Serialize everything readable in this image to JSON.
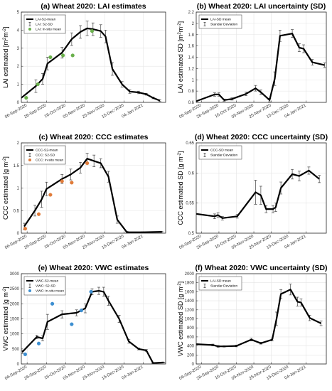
{
  "chart_data": [
    {
      "id": "a",
      "type": "line",
      "title": "(a) Wheat 2020: LAI estimates",
      "ylabel": "LAI estimated [m$^2$m$^{-2}$]",
      "xlabel": "",
      "ylim": [
        0,
        5
      ],
      "yticks": [
        0,
        1,
        2,
        3,
        4,
        5
      ],
      "xlim": [
        "2020-08-31",
        "2021-01-27"
      ],
      "xticks": [
        "06-Sep-2020",
        "26-Sep-2020",
        "16-Oct-2020",
        "05-Nov-2020",
        "25-Nov-2020",
        "15-Dec-2020",
        "04-Jan-2021"
      ],
      "grid": true,
      "legend_position": "top-left",
      "legend": [
        "LAI-S2-mean",
        "LAI: S2-SD",
        "LAI: in-situ mean"
      ],
      "series": [
        {
          "name": "LAI-S2-mean",
          "kind": "mean_with_sd",
          "x": [
            "2020-08-31",
            "2020-09-15",
            "2020-09-22",
            "2020-09-27",
            "2020-10-12",
            "2020-10-22",
            "2020-10-31",
            "2020-11-07",
            "2020-11-13",
            "2020-11-21",
            "2020-11-26",
            "2020-12-03",
            "2020-12-13",
            "2020-12-21",
            "2020-12-30",
            "2021-01-07",
            "2021-01-14",
            "2021-01-21"
          ],
          "y": [
            0.25,
            0.9,
            1.3,
            2.15,
            2.75,
            3.5,
            3.9,
            4.1,
            4.05,
            3.95,
            3.65,
            1.85,
            1.0,
            0.6,
            0.55,
            0.45,
            0.25,
            0.1
          ],
          "sd": [
            0,
            0.35,
            0.3,
            0.35,
            0.3,
            0.35,
            0.35,
            0.4,
            0.35,
            0.35,
            0.35,
            0.35,
            0.15,
            0.1,
            0.07,
            0.05,
            0.05,
            0.05
          ]
        },
        {
          "name": "LAI: in-situ mean",
          "kind": "insitu",
          "color": "#6ab04c",
          "x": [
            "2020-09-05",
            "2020-09-17",
            "2020-09-30",
            "2020-10-13",
            "2020-10-23",
            "2020-11-12"
          ],
          "y": [
            0.25,
            1.0,
            2.5,
            2.6,
            2.6,
            3.95
          ]
        }
      ]
    },
    {
      "id": "b",
      "type": "line",
      "title": "(b) Wheat 2020: LAI uncertainty (SD)",
      "ylabel": "LAI estimated SD [m$^2$m$^{-2}$]",
      "xlabel": "",
      "ylim": [
        0.6,
        2.2
      ],
      "yticks": [
        0.6,
        0.8,
        1,
        1.2,
        1.4,
        1.6,
        1.8,
        2,
        2.2
      ],
      "xlim": [
        "2020-08-31",
        "2021-01-27"
      ],
      "xticks": [
        "06-Sep-2020",
        "26-Sep-2020",
        "16-Oct-2020",
        "05-Nov-2020",
        "25-Nov-2020",
        "15-Dec-2020",
        "04-Jan-2021"
      ],
      "grid": true,
      "legend_position": "top-left",
      "legend": [
        "LAI-SD mean",
        "Standar Deviation"
      ],
      "series": [
        {
          "name": "LAI-SD mean",
          "kind": "mean_with_sd",
          "x": [
            "2020-08-31",
            "2020-09-21",
            "2020-09-26",
            "2020-10-02",
            "2020-10-11",
            "2020-10-27",
            "2020-11-07",
            "2020-11-13",
            "2020-11-23",
            "2020-11-29",
            "2020-12-05",
            "2020-12-19",
            "2020-12-27",
            "2021-01-01",
            "2021-01-11",
            "2021-01-25"
          ],
          "y": [
            0.62,
            0.74,
            0.74,
            0.64,
            0.66,
            0.75,
            0.85,
            0.78,
            0.64,
            1.02,
            1.78,
            1.82,
            1.57,
            1.55,
            1.31,
            1.26
          ],
          "sd": [
            0,
            0.03,
            0.03,
            0.02,
            0.02,
            0.03,
            0.05,
            0.04,
            0.03,
            0.12,
            0.1,
            0.07,
            0.07,
            0.07,
            0.05,
            0.04
          ]
        }
      ]
    },
    {
      "id": "c",
      "type": "line",
      "title": "(c) Wheat 2020: CCC estimates",
      "ylabel": "CCC estimated [g m$^{-2}$]",
      "xlabel": "",
      "ylim": [
        0,
        2
      ],
      "yticks": [
        0,
        0.5,
        1,
        1.5,
        2
      ],
      "xlim": [
        "2020-08-31",
        "2021-01-27"
      ],
      "xticks": [
        "06-Sep-2020",
        "26-Sep-2020",
        "16-Oct-2020",
        "05-Nov-2020",
        "25-Nov-2020",
        "15-Dec-2020",
        "04-Jan-2021"
      ],
      "grid": true,
      "legend_position": "top-left",
      "legend": [
        "CCC-S2-mean",
        "CCC: S2-SD",
        "CCC: in-situ mean"
      ],
      "series": [
        {
          "name": "CCC-S2-mean",
          "kind": "mean_with_sd",
          "x": [
            "2020-09-03",
            "2020-09-14",
            "2020-09-21",
            "2020-09-26",
            "2020-10-12",
            "2020-10-21",
            "2020-10-31",
            "2020-11-07",
            "2020-11-14",
            "2020-11-21",
            "2020-11-29",
            "2020-12-08",
            "2020-12-18",
            "2021-01-03",
            "2021-01-23"
          ],
          "y": [
            0.15,
            0.5,
            0.75,
            0.98,
            1.2,
            1.3,
            1.45,
            1.65,
            1.6,
            1.55,
            1.25,
            0.3,
            0.02,
            0.02,
            0.03
          ],
          "sd": [
            0.07,
            0.12,
            0.18,
            0.15,
            0.1,
            0.12,
            0.12,
            0.12,
            0.13,
            0.1,
            0.12,
            0.08,
            0.02,
            0.01,
            0.01
          ]
        },
        {
          "name": "CCC: in-situ mean",
          "kind": "insitu",
          "color": "#e07b39",
          "x": [
            "2020-09-04",
            "2020-09-18",
            "2020-09-30",
            "2020-10-12",
            "2020-10-22",
            "2020-11-07"
          ],
          "y": [
            0.1,
            0.42,
            0.85,
            1.15,
            1.12,
            1.55
          ]
        }
      ]
    },
    {
      "id": "d",
      "type": "line",
      "title": "(d) Wheat 2020: CCC uncertainty (SD)",
      "ylabel": "CCC estimated SD [g m$^{-2}$]",
      "xlabel": "",
      "ylim": [
        0.5,
        0.65
      ],
      "yticks": [
        0.5,
        0.55,
        0.6,
        0.65
      ],
      "xlim": [
        "2020-08-31",
        "2021-01-27"
      ],
      "xticks": [
        "06-Sep-2020",
        "26-Sep-2020",
        "16-Oct-2020",
        "05-Nov-2020",
        "25-Nov-2020",
        "15-Dec-2020",
        "04-Jan-2021"
      ],
      "grid": true,
      "legend_position": "top-left",
      "legend": [
        "CCC-SD mean",
        "Standar Deviation"
      ],
      "series": [
        {
          "name": "CCC-SD mean",
          "kind": "mean_with_sd",
          "x": [
            "2020-08-31",
            "2020-09-21",
            "2020-09-25",
            "2020-09-30",
            "2020-10-17",
            "2020-11-07",
            "2020-11-13",
            "2020-11-19",
            "2020-11-27",
            "2020-11-30",
            "2020-12-06",
            "2020-12-19",
            "2020-12-27",
            "2021-01-07",
            "2021-01-19"
          ],
          "y": [
            0.532,
            0.528,
            0.53,
            0.525,
            0.528,
            0.568,
            0.563,
            0.54,
            0.54,
            0.543,
            0.575,
            0.598,
            0.595,
            0.604,
            0.59
          ],
          "sd": [
            0,
            0.004,
            0.004,
            0.003,
            0.003,
            0.02,
            0.015,
            0.006,
            0.006,
            0.007,
            0.01,
            0.008,
            0.008,
            0.006,
            0.006
          ]
        }
      ]
    },
    {
      "id": "e",
      "type": "line",
      "title": "(e) Wheat 2020: VWC estimates",
      "ylabel": "VWC estimated [g m$^{-2}$]",
      "xlabel": "",
      "ylim": [
        0,
        3000
      ],
      "yticks": [
        0,
        500,
        1000,
        1500,
        2000,
        2500,
        3000
      ],
      "xlim": [
        "2020-08-31",
        "2021-01-27"
      ],
      "xticks": [
        "06-Sep-2020",
        "26-Sep-2020",
        "16-Oct-2020",
        "05-Nov-2020",
        "25-Nov-2020",
        "15-Dec-2020",
        "04-Jan-2021"
      ],
      "grid": true,
      "legend_position": "top-left",
      "legend": [
        "VWC-S2-mean",
        "VWC: S2-SD",
        "VWC: in-situ mean"
      ],
      "series": [
        {
          "name": "VWC-S2-mean",
          "kind": "mean_with_sd",
          "x": [
            "2020-09-01",
            "2020-09-16",
            "2020-09-22",
            "2020-09-27",
            "2020-10-12",
            "2020-10-27",
            "2020-11-05",
            "2020-11-12",
            "2020-11-19",
            "2020-11-24",
            "2020-11-29",
            "2020-12-10",
            "2020-12-20",
            "2020-12-30",
            "2021-01-07",
            "2021-01-14",
            "2021-01-25"
          ],
          "y": [
            400,
            900,
            850,
            1400,
            1650,
            1700,
            1850,
            2400,
            2430,
            2400,
            2100,
            1500,
            750,
            500,
            450,
            30,
            50
          ],
          "sd": [
            50,
            60,
            80,
            250,
            120,
            100,
            150,
            100,
            120,
            150,
            150,
            120,
            60,
            30,
            30,
            10,
            10
          ]
        },
        {
          "name": "VWC: in-situ mean",
          "kind": "insitu",
          "color": "#3d8fd1",
          "x": [
            "2020-09-04",
            "2020-09-18",
            "2020-10-02",
            "2020-10-22",
            "2020-11-01",
            "2020-11-11"
          ],
          "y": [
            320,
            680,
            2000,
            1320,
            1780,
            2400
          ]
        }
      ]
    },
    {
      "id": "f",
      "type": "line",
      "title": "(f) Wheat 2020: VWC uncertainty (SD)",
      "ylabel": "VWC estimated SD [g m$^{-2}$]",
      "xlabel": "",
      "ylim": [
        0,
        2000
      ],
      "yticks": [
        0,
        200,
        400,
        600,
        800,
        1000,
        1200,
        1400,
        1600,
        1800,
        2000
      ],
      "xlim": [
        "2020-08-31",
        "2021-01-27"
      ],
      "xticks": [
        "06-Sep-2020",
        "26-Sep-2020",
        "16-Oct-2020",
        "05-Nov-2020",
        "25-Nov-2020",
        "15-Dec-2020",
        "04-Jan-2021"
      ],
      "grid": true,
      "legend_position": "top-left",
      "legend": [
        "LAI-SD mean",
        "Standar Deviation"
      ],
      "series": [
        {
          "name": "LAI-SD mean",
          "kind": "mean_with_sd",
          "x": [
            "2020-08-31",
            "2020-09-19",
            "2020-09-25",
            "2020-10-02",
            "2020-10-16",
            "2020-11-02",
            "2020-11-13",
            "2020-11-26",
            "2020-12-01",
            "2020-12-06",
            "2020-12-17",
            "2020-12-25",
            "2020-12-29",
            "2021-01-08",
            "2021-01-21"
          ],
          "y": [
            440,
            420,
            390,
            390,
            400,
            540,
            460,
            540,
            1000,
            1550,
            1650,
            1380,
            1360,
            1020,
            900
          ],
          "sd": [
            10,
            20,
            20,
            15,
            20,
            30,
            20,
            30,
            150,
            100,
            120,
            100,
            80,
            60,
            50
          ]
        }
      ]
    }
  ]
}
